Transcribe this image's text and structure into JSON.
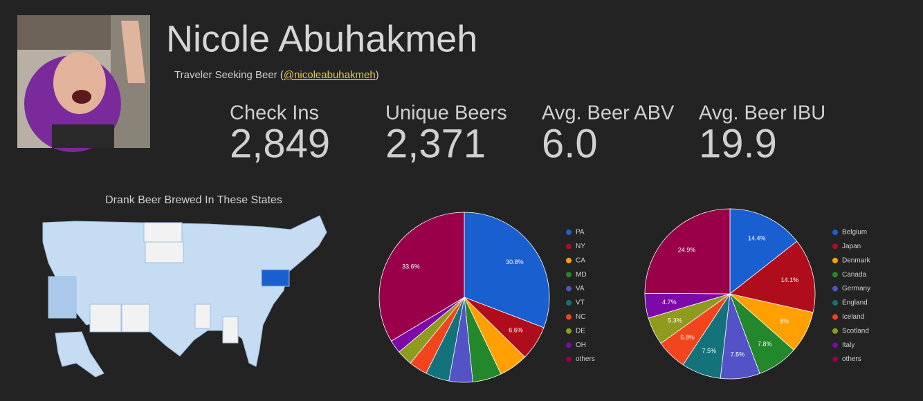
{
  "header": {
    "name": "Nicole Abuhakmeh",
    "subtitle_prefix": "Traveler Seeking Beer (",
    "handle": "@nicoleabuhakmeh",
    "subtitle_suffix": ")"
  },
  "stats": [
    {
      "label": "Check Ins",
      "value": "2,849"
    },
    {
      "label": "Unique Beers",
      "value": "2,371"
    },
    {
      "label": "Avg. Beer ABV",
      "value": "6.0"
    },
    {
      "label": "Avg. Beer IBU",
      "value": "19.9"
    }
  ],
  "map": {
    "title": "Drank Beer Brewed In These States"
  },
  "chart_data": [
    {
      "type": "pie",
      "categories": [
        "PA",
        "NY",
        "CA",
        "MD",
        "VA",
        "VT",
        "NC",
        "DE",
        "OH",
        "others"
      ],
      "values": [
        30.8,
        6.6,
        5.5,
        5.5,
        4.5,
        4.5,
        3.5,
        3,
        2.5,
        33.6
      ],
      "value_labels": [
        "30.8%",
        "6.6%",
        null,
        null,
        null,
        null,
        null,
        null,
        null,
        "33.6%"
      ],
      "colors": [
        "#1a5fd0",
        "#b00d1c",
        "#ffa000",
        "#23882b",
        "#5352c6",
        "#14737a",
        "#f2441d",
        "#8e9b1e",
        "#7d09a9",
        "#990049"
      ]
    },
    {
      "type": "pie",
      "categories": [
        "Belgium",
        "Japan",
        "Denmark",
        "Canada",
        "Germany",
        "England",
        "Iceland",
        "Scotland",
        "Italy",
        "others"
      ],
      "values": [
        14.4,
        14.1,
        8,
        7.8,
        7.5,
        7.5,
        5.8,
        5.3,
        4.7,
        24.9
      ],
      "value_labels": [
        "14.4%",
        "14.1%",
        "8%",
        "7.8%",
        "7.5%",
        "7.5%",
        "5.8%",
        "5.3%",
        "4.7%",
        "24.9%"
      ],
      "colors": [
        "#1a5fd0",
        "#b00d1c",
        "#ffa000",
        "#23882b",
        "#5352c6",
        "#14737a",
        "#f2441d",
        "#8e9b1e",
        "#7d09a9",
        "#990049"
      ]
    }
  ]
}
